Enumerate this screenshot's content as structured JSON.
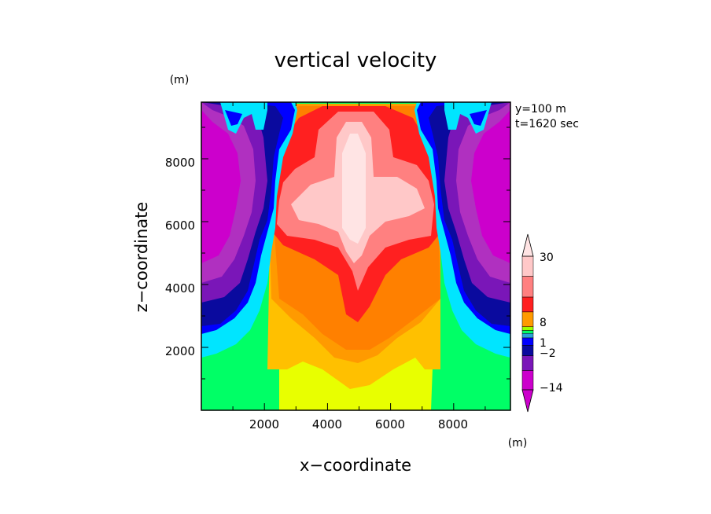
{
  "chart_data": {
    "type": "heatmap",
    "title": "vertical velocity",
    "xlabel": "x−coordinate",
    "ylabel": "z−coordinate",
    "x_unit": "(m)",
    "y_unit": "(m)",
    "colorbar_unit": "(m)",
    "annotations": [
      "y=100 m",
      "t=1620 sec"
    ],
    "xlim": [
      0,
      9800
    ],
    "ylim": [
      0,
      9800
    ],
    "x_ticks": [
      "2000",
      "4000",
      "6000",
      "8000"
    ],
    "y_ticks": [
      "2000",
      "4000",
      "6000",
      "8000"
    ],
    "x_tick_values": [
      2000,
      4000,
      6000,
      8000
    ],
    "y_tick_values": [
      2000,
      4000,
      6000,
      8000
    ],
    "colorbar_labels": [
      {
        "text": "30",
        "value": 30
      },
      {
        "text": "8",
        "value": 8
      },
      {
        "text": "1",
        "value": 1
      },
      {
        "text": "−2",
        "value": -2
      },
      {
        "text": "−14",
        "value": -14
      }
    ],
    "colorbar_colors": [
      "#cc00cc",
      "#7a16b8",
      "#0a0a9e",
      "#0000ff",
      "#2aa2d8",
      "#00ff66",
      "#9cff00",
      "#ff9a00",
      "#ff2020",
      "#ff8080",
      "#ffc8c8"
    ],
    "contour_levels": [
      -14,
      -8,
      -2,
      1,
      4,
      8,
      15,
      30
    ],
    "regions": [
      {
        "name": "updraft_core_max",
        "value": 30,
        "x_range": [
          4500,
          5500
        ],
        "z_range": [
          5500,
          9600
        ]
      },
      {
        "name": "updraft_strong",
        "value": 15,
        "x_range": [
          2700,
          7300
        ],
        "z_range": [
          4500,
          9700
        ]
      },
      {
        "name": "updraft_moderate",
        "value": 8,
        "x_range": [
          2400,
          7500
        ],
        "z_range": [
          3000,
          9800
        ]
      },
      {
        "name": "downdraft_left",
        "value": -14,
        "x_range": [
          0,
          1500
        ],
        "z_range": [
          5000,
          9500
        ]
      },
      {
        "name": "downdraft_right",
        "value": -14,
        "x_range": [
          8200,
          9800
        ],
        "z_range": [
          5000,
          9500
        ]
      }
    ]
  }
}
